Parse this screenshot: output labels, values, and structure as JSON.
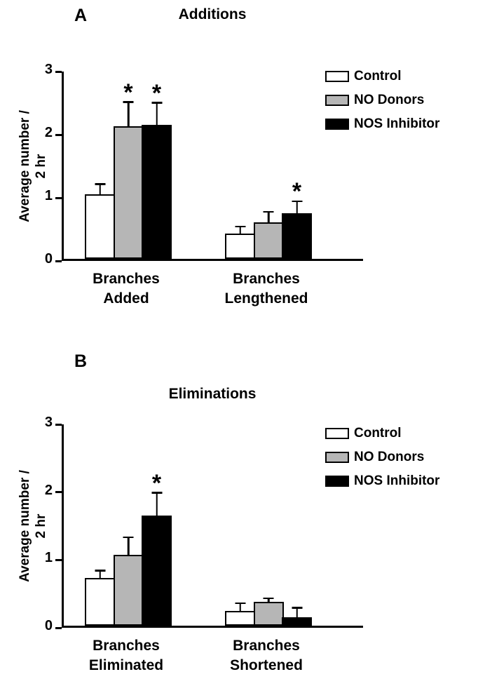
{
  "figure": {
    "panels": [
      {
        "panel_label": "A",
        "title": "Additions",
        "chart_data": {
          "type": "bar",
          "title": "Additions",
          "ylabel": "Average number / 2 hr",
          "ylabel_line1": "Average number /",
          "ylabel_line2": "2 hr",
          "ylim": [
            0,
            3
          ],
          "yticks": [
            0,
            1,
            2,
            3
          ],
          "grid": false,
          "legend_position": "top-right",
          "significance_marker": "*",
          "categories": [
            {
              "line1": "Branches",
              "line2": "Added"
            },
            {
              "line1": "Branches",
              "line2": "Lengthened"
            }
          ],
          "series": [
            {
              "name": "Control",
              "color": "#ffffff",
              "values": [
                1.02,
                0.4
              ],
              "errors": [
                0.15,
                0.1
              ],
              "significant": [
                false,
                false
              ]
            },
            {
              "name": "NO Donors",
              "color": "#b6b6b6",
              "values": [
                2.1,
                0.58
              ],
              "errors": [
                0.37,
                0.15
              ],
              "significant": [
                true,
                false
              ]
            },
            {
              "name": "NOS Inhibitor",
              "color": "#000000",
              "values": [
                2.12,
                0.72
              ],
              "errors": [
                0.34,
                0.18
              ],
              "significant": [
                true,
                true
              ]
            }
          ]
        }
      },
      {
        "panel_label": "B",
        "title": "Eliminations",
        "chart_data": {
          "type": "bar",
          "title": "Eliminations",
          "ylabel": "Average number / 2 hr",
          "ylabel_line1": "Average number /",
          "ylabel_line2": "2 hr",
          "ylim": [
            0,
            3
          ],
          "yticks": [
            0,
            1,
            2,
            3
          ],
          "grid": false,
          "legend_position": "top-right",
          "significance_marker": "*",
          "categories": [
            {
              "line1": "Branches",
              "line2": "Eliminated"
            },
            {
              "line1": "Branches",
              "line2": "Shortened"
            }
          ],
          "series": [
            {
              "name": "Control",
              "color": "#ffffff",
              "values": [
                0.7,
                0.22
              ],
              "errors": [
                0.1,
                0.1
              ],
              "significant": [
                false,
                false
              ]
            },
            {
              "name": "NO Donors",
              "color": "#b6b6b6",
              "values": [
                1.05,
                0.35
              ],
              "errors": [
                0.24,
                0.04
              ],
              "significant": [
                false,
                false
              ]
            },
            {
              "name": "NOS Inhibitor",
              "color": "#000000",
              "values": [
                1.62,
                0.12
              ],
              "errors": [
                0.33,
                0.13
              ],
              "significant": [
                true,
                false
              ]
            }
          ]
        }
      }
    ]
  }
}
